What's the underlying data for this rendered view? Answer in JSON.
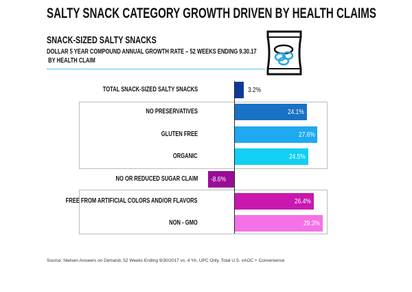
{
  "chart_data": {
    "type": "bar",
    "orientation": "horizontal",
    "title": "SALTY SNACK CATEGORY GROWTH DRIVEN BY HEALTH CLAIMS",
    "subtitle": "SNACK-SIZED SALTY SNACKS",
    "description": [
      "DOLLAR 5 YEAR COMPOUND ANNUAL GROWTH RATE – 52 WEEKS ENDING 9.30.17",
      "BY HEALTH CLAIM"
    ],
    "categories": [
      "TOTAL SNACK-SIZED SALTY SNACKS",
      "NO PRESERVATIVES",
      "GLUTEN FREE",
      "ORGANIC",
      "NO OR REDUCED SUGAR CLAIM",
      "FREE FROM ARTIFICIAL COLORS AND/OR FLAVORS",
      "NON - GMO"
    ],
    "values": [
      3.2,
      24.1,
      27.6,
      24.5,
      -8.6,
      26.4,
      29.3
    ],
    "labels": [
      "3.2%",
      "24.1%",
      "27.6%",
      "24.5%",
      "-8.6%",
      "26.4%",
      "29.3%"
    ],
    "colors": [
      "#0d3a9a",
      "#1a72c6",
      "#1eaaf0",
      "#12cff4",
      "#980c98",
      "#c918b0",
      "#f472e6"
    ],
    "unit": "%",
    "grid": false,
    "groups": [
      [
        1,
        3
      ],
      [
        5,
        6
      ]
    ]
  },
  "icon": "snack-bag-icon",
  "source": "Source: Nielsen Answers on Demand, 52 Weeks Ending 9/30/2017 vs. 4 YA, UPC Only, Total U.S. xAOC + Convenience"
}
